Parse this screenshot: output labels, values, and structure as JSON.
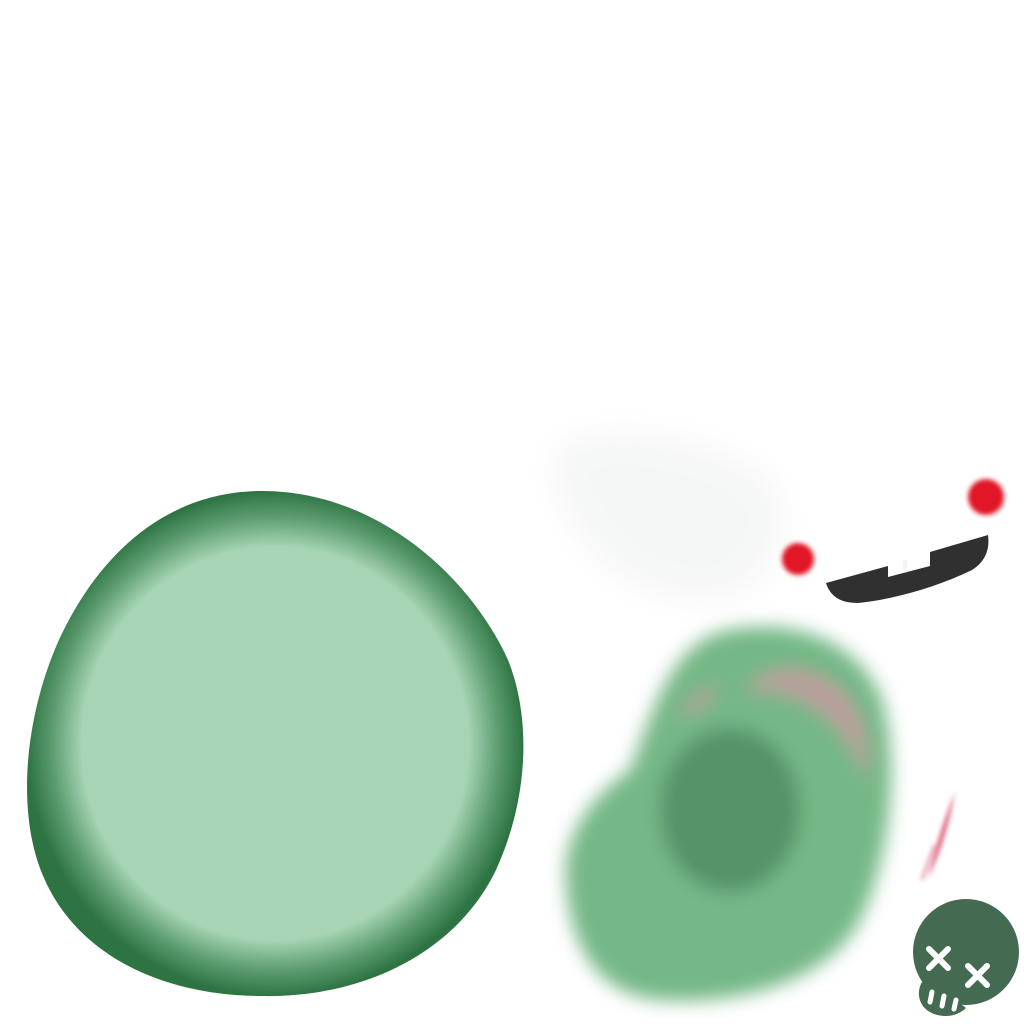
{
  "scene": {
    "background": "#ffffff",
    "large_cell": {
      "rim_color": "#2e7443",
      "inner_color": "#a6d4b4"
    },
    "blob_creature": {
      "body_color": "#74b886",
      "nucleus_color": "#4e8a61",
      "streak_color": "#c79aa0"
    },
    "hidden_face": {
      "eye_color": "#e11525",
      "mouth_color": "#303030"
    },
    "slash_mark": {
      "color": "#d9566f"
    },
    "skull_icon": {
      "name": "skull-icon",
      "color": "#446b51",
      "mark_color": "#ffffff"
    }
  }
}
